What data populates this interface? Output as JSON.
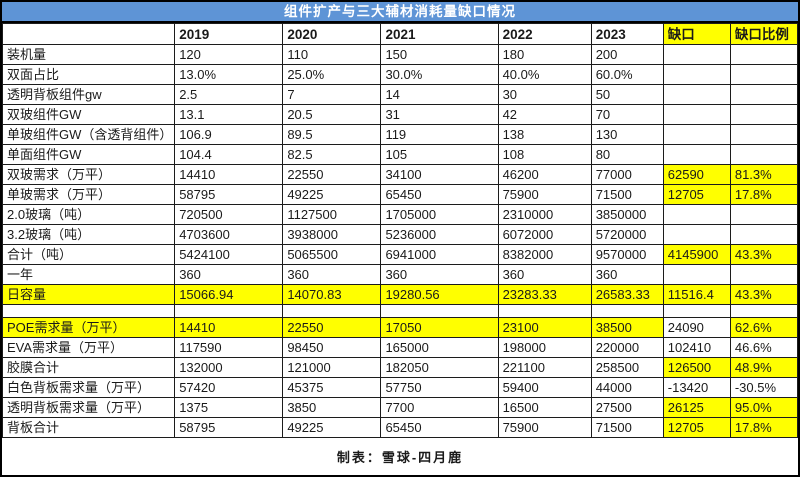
{
  "colors": {
    "title_bar_blue": "#5E94D6",
    "title_text": "#FFFFFF",
    "highlight_yellow": "#FFFF00",
    "negative_red_text": "#C13A37",
    "accent_blue_text": "#7E9DC8",
    "grid_border": "#1C1C1C",
    "body_text": "#1A1A1A"
  },
  "chart_data": {
    "type": "table",
    "title": "组件扩产与三大辅材消耗量缺口情况",
    "footer": "制表：雪球-四月鹿",
    "columns": [
      "",
      "2019",
      "2020",
      "2021",
      "2022",
      "2023",
      "缺口",
      "缺口比例"
    ],
    "column_styles": [
      "",
      "",
      "",
      "",
      "",
      "",
      "y",
      "y"
    ],
    "rows": [
      {
        "label": "装机量",
        "cells": [
          "120",
          "110",
          "150",
          "180",
          "200",
          "",
          ""
        ]
      },
      {
        "label": "双面占比",
        "cells": [
          "13.0%",
          "25.0%",
          "30.0%",
          "40.0%",
          "60.0%",
          "",
          ""
        ],
        "styles": [
          "r",
          "r",
          "r",
          "r",
          "r",
          "",
          ""
        ]
      },
      {
        "label": "透明背板组件gw",
        "cells": [
          "2.5",
          "7",
          "14",
          "30",
          "50",
          "",
          ""
        ]
      },
      {
        "label": "双玻组件GW",
        "cells": [
          "13.1",
          "20.5",
          "31",
          "42",
          "70",
          "",
          ""
        ]
      },
      {
        "label": "单玻组件GW（含透背组件）",
        "cells": [
          "106.9",
          "89.5",
          "119",
          "138",
          "130",
          "",
          ""
        ]
      },
      {
        "label": "单面组件GW",
        "cells": [
          "104.4",
          "82.5",
          "105",
          "108",
          "80",
          "",
          ""
        ]
      },
      {
        "label": "双玻需求（万平）",
        "cells": [
          "14410",
          "22550",
          "34100",
          "46200",
          "77000",
          "62590",
          "81.3%"
        ],
        "styles": [
          "",
          "",
          "",
          "",
          "",
          "y",
          "y"
        ]
      },
      {
        "label": "单玻需求（万平）",
        "cells": [
          "58795",
          "49225",
          "65450",
          "75900",
          "71500",
          "12705",
          "17.8%"
        ],
        "styles": [
          "",
          "",
          "",
          "",
          "",
          "y",
          "y"
        ]
      },
      {
        "label": "2.0玻璃（吨）",
        "cells": [
          "720500",
          "1127500",
          "1705000",
          "2310000",
          "3850000",
          "",
          ""
        ]
      },
      {
        "label": "3.2玻璃（吨）",
        "cells": [
          "4703600",
          "3938000",
          "5236000",
          "6072000",
          "5720000",
          "",
          ""
        ]
      },
      {
        "label": "合计（吨）",
        "cells": [
          "5424100",
          "5065500",
          "6941000",
          "8382000",
          "9570000",
          "4145900",
          "43.3%"
        ],
        "styles": [
          "",
          "",
          "",
          "",
          "",
          "y",
          "y"
        ]
      },
      {
        "label": "一年",
        "cells": [
          "360",
          "360",
          "360",
          "360",
          "360",
          "",
          ""
        ]
      },
      {
        "label": "日容量",
        "label_style": "y bold",
        "cells": [
          "15066.94",
          "14070.83",
          "19280.56",
          "23283.33",
          "26583.33",
          "11516.4",
          "43.3%"
        ],
        "styles": [
          "y",
          "y",
          "y",
          "y",
          "y",
          "y",
          "y"
        ]
      },
      {
        "spacer": true
      },
      {
        "label": "POE需求量（万平）",
        "label_style": "y",
        "cells": [
          "14410",
          "22550",
          "17050",
          "23100",
          "38500",
          "24090",
          "62.6%"
        ],
        "styles": [
          "y",
          "y",
          "y b",
          "y b",
          "y b",
          "",
          "y"
        ]
      },
      {
        "label": "EVA需求量（万平）",
        "cells": [
          "117590",
          "98450",
          "165000",
          "198000",
          "220000",
          "102410",
          "46.6%"
        ],
        "styles": [
          "",
          "",
          "b",
          "b",
          "b",
          "",
          ""
        ]
      },
      {
        "label": "胶膜合计",
        "cells": [
          "132000",
          "121000",
          "182050",
          "221100",
          "258500",
          "126500",
          "48.9%"
        ],
        "styles": [
          "",
          "",
          "",
          "",
          "",
          "y",
          "y"
        ]
      },
      {
        "label": "白色背板需求量（万平）",
        "cells": [
          "57420",
          "45375",
          "57750",
          "59400",
          "44000",
          "-13420",
          "-30.5%"
        ]
      },
      {
        "label": "透明背板需求量（万平）",
        "cells": [
          "1375",
          "3850",
          "7700",
          "16500",
          "27500",
          "26125",
          "95.0%"
        ],
        "styles": [
          "",
          "",
          "",
          "",
          "",
          "y",
          "y"
        ]
      },
      {
        "label": "背板合计",
        "cells": [
          "58795",
          "49225",
          "65450",
          "75900",
          "71500",
          "12705",
          "17.8%"
        ],
        "styles": [
          "",
          "",
          "",
          "",
          "",
          "y",
          "y"
        ]
      }
    ]
  }
}
